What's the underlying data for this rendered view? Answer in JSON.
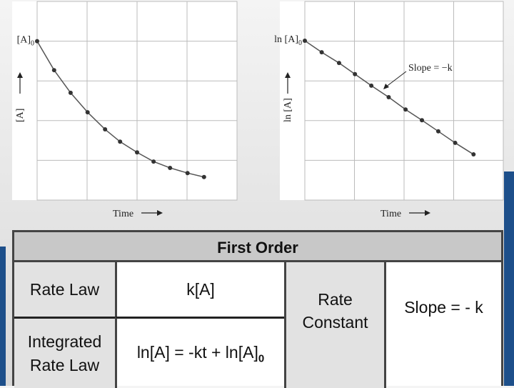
{
  "chart_data": [
    {
      "type": "line",
      "y_label": "[A]",
      "y0_label": "[A]",
      "y0_sub": "0",
      "x_label": "Time",
      "x": [
        0,
        0.34,
        0.67,
        1.01,
        1.36,
        1.66,
        2.0,
        2.33,
        2.66,
        3.01,
        3.34
      ],
      "values": [
        4.0,
        3.27,
        2.7,
        2.21,
        1.78,
        1.47,
        1.2,
        0.97,
        0.81,
        0.68,
        0.58
      ],
      "color": "#555555",
      "xlim": [
        0,
        4
      ],
      "ylim": [
        0,
        5
      ],
      "grid": true
    },
    {
      "type": "line",
      "y_label": "ln [A]",
      "y0_label": "ln [A]",
      "y0_sub": "0",
      "x_label": "Time",
      "annotation": "Slope = −k",
      "x": [
        0,
        0.34,
        0.69,
        1.01,
        1.34,
        1.69,
        2.03,
        2.36,
        2.69,
        3.03,
        3.4
      ],
      "values": [
        4.01,
        3.72,
        3.45,
        3.17,
        2.88,
        2.59,
        2.28,
        2.01,
        1.73,
        1.44,
        1.15
      ],
      "color": "#555555",
      "xlim": [
        0,
        4
      ],
      "ylim": [
        0,
        5
      ],
      "grid": true
    }
  ],
  "table": {
    "header": "First Order",
    "rate_law_label": "Rate Law",
    "rate_law": "k[A]",
    "integrated_label": "Integrated Rate Law",
    "integrated": "ln[A] = -kt + ln[A]",
    "integrated_sub": "0",
    "constant_label": "Rate Constant",
    "constant": "Slope = - k"
  }
}
